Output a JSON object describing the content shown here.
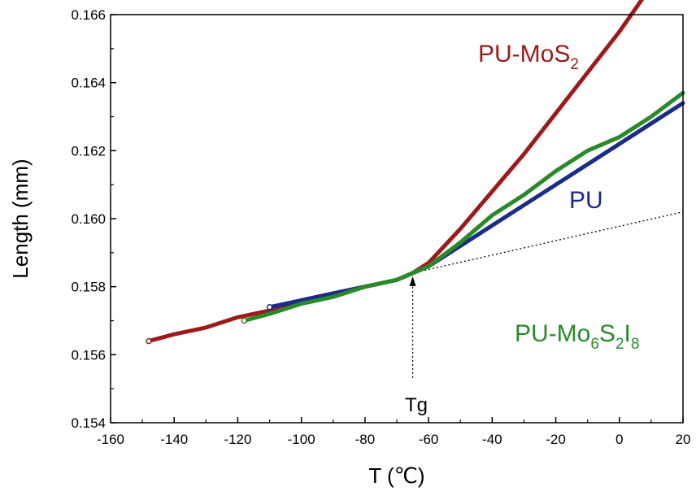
{
  "chart_data": {
    "type": "line",
    "xlabel": "T (℃)",
    "ylabel": "Length (mm)",
    "xlim": [
      -160,
      20
    ],
    "ylim": [
      0.154,
      0.166
    ],
    "xticks": [
      "-160",
      "-140",
      "-120",
      "-100",
      "-80",
      "-60",
      "-40",
      "-20",
      "0",
      "20"
    ],
    "yticks": [
      "0.154",
      "0.156",
      "0.158",
      "0.160",
      "0.162",
      "0.164",
      "0.166"
    ],
    "series": [
      {
        "name": "PU-MoS2",
        "color": "#9b1b1b",
        "x": [
          -148,
          -140,
          -130,
          -120,
          -110,
          -100,
          -90,
          -80,
          -70,
          -65,
          -60,
          -50,
          -40,
          -30,
          -20,
          -10,
          0,
          12
        ],
        "y": [
          0.1564,
          0.1566,
          0.1568,
          0.1571,
          0.1573,
          0.1576,
          0.1578,
          0.158,
          0.1582,
          0.1584,
          0.1587,
          0.1597,
          0.1608,
          0.1619,
          0.1631,
          0.1643,
          0.1655,
          0.1671
        ]
      },
      {
        "name": "PU",
        "color": "#1a2b8a",
        "x": [
          -110,
          -100,
          -90,
          -80,
          -70,
          -65,
          -60,
          -50,
          -40,
          -30,
          -20,
          -10,
          0,
          10,
          20
        ],
        "y": [
          0.1574,
          0.1576,
          0.1578,
          0.158,
          0.1582,
          0.1584,
          0.1586,
          0.1592,
          0.1598,
          0.1604,
          0.161,
          0.1616,
          0.1622,
          0.1628,
          0.1634
        ]
      },
      {
        "name": "PU-Mo6S2I8",
        "color": "#2a8a2a",
        "x": [
          -118,
          -110,
          -100,
          -90,
          -80,
          -70,
          -65,
          -60,
          -50,
          -40,
          -30,
          -20,
          -10,
          0,
          10,
          20
        ],
        "y": [
          0.157,
          0.1572,
          0.1575,
          0.1577,
          0.158,
          0.1582,
          0.1584,
          0.1586,
          0.1593,
          0.1601,
          0.1607,
          0.1614,
          0.162,
          0.1624,
          0.163,
          0.1637
        ]
      }
    ],
    "extrapolation_line": {
      "x": [
        -65,
        20
      ],
      "y": [
        0.1584,
        0.1602
      ]
    },
    "annotations": {
      "tg": {
        "text": "Tg",
        "x": -65,
        "y": 0.1584
      },
      "label_mos2": {
        "main": "PU-MoS",
        "sub1": "2"
      },
      "label_pu": {
        "main": "PU"
      },
      "label_mo6": {
        "p1": "PU-Mo",
        "s1": "6",
        "p2": "S",
        "s2": "2",
        "p3": "I",
        "s3": "8"
      }
    }
  }
}
